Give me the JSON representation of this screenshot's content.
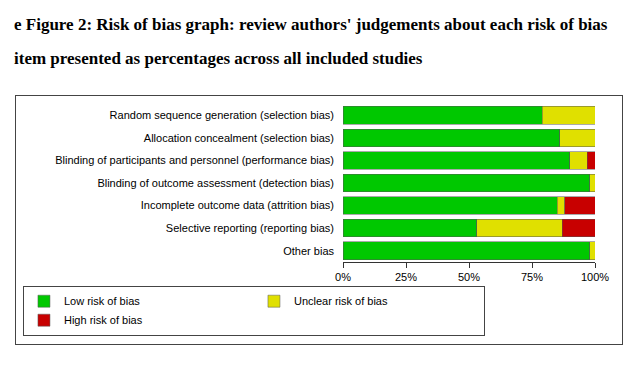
{
  "chart_data": {
    "type": "bar",
    "title": "e Figure 2: Risk of bias graph: review authors' judgements about each risk of bias item presented as percentages across all included studies",
    "orientation": "horizontal",
    "stacked": true,
    "legend": "bottom",
    "grid": false,
    "categories": [
      "Random sequence generation (selection bias)",
      "Allocation concealment (selection bias)",
      "Blinding of participants and personnel (performance bias)",
      "Blinding of outcome assessment (detection bias)",
      "Incomplete outcome data (attrition bias)",
      "Selective reporting (reporting bias)",
      "Other bias"
    ],
    "series": [
      {
        "name": "Low risk of bias",
        "color": "#00c800",
        "values": [
          79,
          86,
          90,
          98,
          85,
          53,
          98
        ]
      },
      {
        "name": "Unclear risk of bias",
        "color": "#e0e000",
        "values": [
          21,
          14,
          7,
          2,
          3,
          34,
          2
        ]
      },
      {
        "name": "High risk of bias",
        "color": "#c80000",
        "values": [
          0,
          0,
          3,
          0,
          12,
          13,
          0
        ]
      }
    ],
    "xlim": [
      0,
      100
    ],
    "xticks": [
      {
        "value": 0,
        "label": "0%"
      },
      {
        "value": 25,
        "label": "25%"
      },
      {
        "value": 50,
        "label": "50%"
      },
      {
        "value": 75,
        "label": "75%"
      },
      {
        "value": 100,
        "label": "100%"
      }
    ]
  }
}
